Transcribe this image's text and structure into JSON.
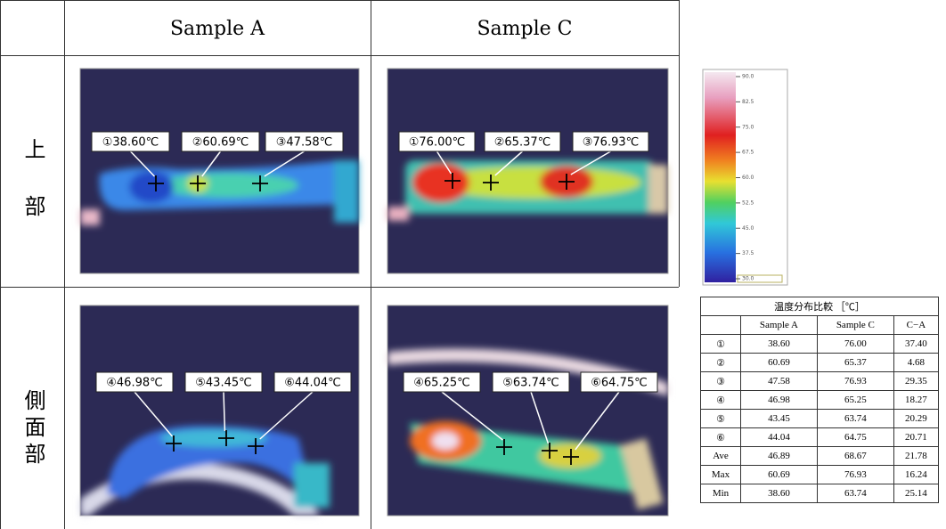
{
  "header": {
    "columns": [
      "Sample A",
      "Sample C"
    ]
  },
  "rows": [
    {
      "label": "上部"
    },
    {
      "label": "側面部"
    }
  ],
  "images": [
    {
      "callouts": [
        "①38.60℃",
        "②60.69℃",
        "③47.58℃"
      ]
    },
    {
      "callouts": [
        "①76.00℃",
        "②65.37℃",
        "③76.93℃"
      ]
    },
    {
      "callouts": [
        "④46.98℃",
        "⑤43.45℃",
        "⑥44.04℃"
      ]
    },
    {
      "callouts": [
        "④65.25℃",
        "⑤63.74℃",
        "⑥64.75℃"
      ]
    }
  ],
  "scale": {
    "ticks": [
      "90.0",
      "82.5",
      "75.0",
      "67.5",
      "60.0",
      "52.5",
      "45.0",
      "37.5",
      "30.0"
    ]
  },
  "table": {
    "title": "温度分布比較 ［℃］",
    "columns": [
      "Sample A",
      "Sample C",
      "C−A"
    ],
    "rows": [
      [
        "①",
        "38.60",
        "76.00",
        "37.40"
      ],
      [
        "②",
        "60.69",
        "65.37",
        "4.68"
      ],
      [
        "③",
        "47.58",
        "76.93",
        "29.35"
      ],
      [
        "④",
        "46.98",
        "65.25",
        "18.27"
      ],
      [
        "⑤",
        "43.45",
        "63.74",
        "20.29"
      ],
      [
        "⑥",
        "44.04",
        "64.75",
        "20.71"
      ],
      [
        "Ave",
        "46.89",
        "68.67",
        "21.78"
      ],
      [
        "Max",
        "60.69",
        "76.93",
        "16.24"
      ],
      [
        "Min",
        "38.60",
        "63.74",
        "25.14"
      ]
    ]
  }
}
